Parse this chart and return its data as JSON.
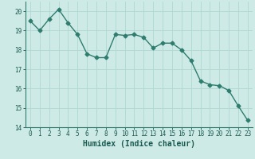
{
  "x": [
    0,
    1,
    2,
    3,
    4,
    5,
    6,
    7,
    8,
    9,
    10,
    11,
    12,
    13,
    14,
    15,
    16,
    17,
    18,
    19,
    20,
    21,
    22,
    23
  ],
  "y": [
    19.5,
    19.0,
    19.6,
    20.1,
    19.4,
    18.8,
    17.8,
    17.6,
    17.6,
    18.8,
    18.75,
    18.8,
    18.65,
    18.1,
    18.35,
    18.35,
    18.0,
    17.45,
    16.4,
    16.2,
    16.15,
    15.9,
    15.1,
    14.35
  ],
  "line_color": "#2e7d6e",
  "marker": "D",
  "marker_size": 2.5,
  "bg_color": "#ceeae6",
  "grid_color": "#b0d8d4",
  "xlabel": "Humidex (Indice chaleur)",
  "ylim": [
    14,
    20.5
  ],
  "xlim": [
    -0.5,
    23.5
  ],
  "yticks": [
    14,
    15,
    16,
    17,
    18,
    19,
    20
  ],
  "xticks": [
    0,
    1,
    2,
    3,
    4,
    5,
    6,
    7,
    8,
    9,
    10,
    11,
    12,
    13,
    14,
    15,
    16,
    17,
    18,
    19,
    20,
    21,
    22,
    23
  ],
  "tick_fontsize": 5.5,
  "xlabel_fontsize": 7,
  "line_width": 1.0
}
